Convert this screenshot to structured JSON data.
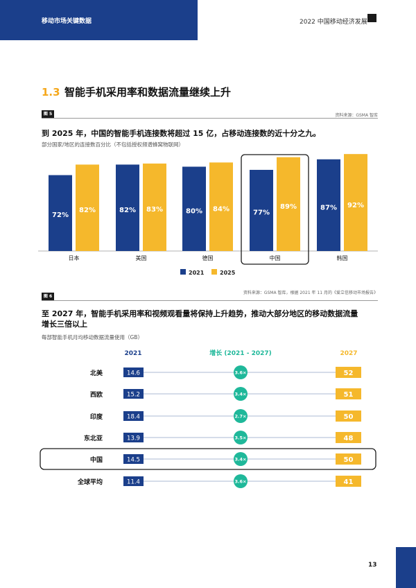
{
  "header": {
    "section_label": "移动市场关键数据",
    "report_title": "2022 中国移动经济发展"
  },
  "section": {
    "number": "1.3",
    "title": "智能手机采用率和数据流量继续上升"
  },
  "figure5": {
    "tag": "图 5",
    "source": "资料来源：GSMA 智库",
    "heading": "到 2025 年，中国的智能手机连接数将超过 15 亿，占移动连接数的近十分之九。",
    "subtitle": "部分国家/地区的连接数百分比（不包括授权频谱蜂窝物联网）"
  },
  "figure6": {
    "tag": "图 6",
    "source": "资料来源：GSMA 智库，根据 2021 年 11 月的《爱立信移动市场报告》",
    "heading_line1": "至 2027 年，智能手机采用率和视频观看量将保持上升趋势，推动大部分地区的移动数据流量",
    "heading_line2": "增长三倍以上",
    "subtitle": "每部智能手机月均移动数据流量使用（GB）"
  },
  "chart_data": [
    {
      "type": "bar",
      "categories": [
        "日本",
        "美国",
        "德国",
        "中国",
        "韩国"
      ],
      "series": [
        {
          "name": "2021",
          "values": [
            72,
            82,
            80,
            77,
            87
          ],
          "labels": [
            "72%",
            "82%",
            "80%",
            "77%",
            "87%"
          ],
          "color": "#1b3f8b"
        },
        {
          "name": "2025",
          "values": [
            82,
            83,
            84,
            89,
            92
          ],
          "labels": [
            "82%",
            "83%",
            "84%",
            "89%",
            "92%"
          ],
          "color": "#f5b82c"
        }
      ],
      "highlight_category": "中国",
      "legend_position": "bottom-center"
    },
    {
      "type": "table",
      "columns": [
        "2021",
        "增长 (2021 - 2027)",
        "2027"
      ],
      "rows": [
        {
          "region": "北美",
          "v2021": "14.6",
          "growth": "3.6×",
          "v2027": "52"
        },
        {
          "region": "西欧",
          "v2021": "15.2",
          "growth": "3.4×",
          "v2027": "51"
        },
        {
          "region": "印度",
          "v2021": "18.4",
          "growth": "2.7×",
          "v2027": "50"
        },
        {
          "region": "东北亚",
          "v2021": "13.9",
          "growth": "3.5×",
          "v2027": "48"
        },
        {
          "region": "中国",
          "v2021": "14.5",
          "growth": "3.4×",
          "v2027": "50"
        },
        {
          "region": "全球平均",
          "v2021": "11.4",
          "growth": "3.6×",
          "v2027": "41"
        }
      ],
      "highlight_region": "中国",
      "colors": {
        "v2021": "#1b3f8b",
        "growth": "#1fb89a",
        "v2027": "#f5b82c"
      }
    }
  ],
  "page_number": "13"
}
